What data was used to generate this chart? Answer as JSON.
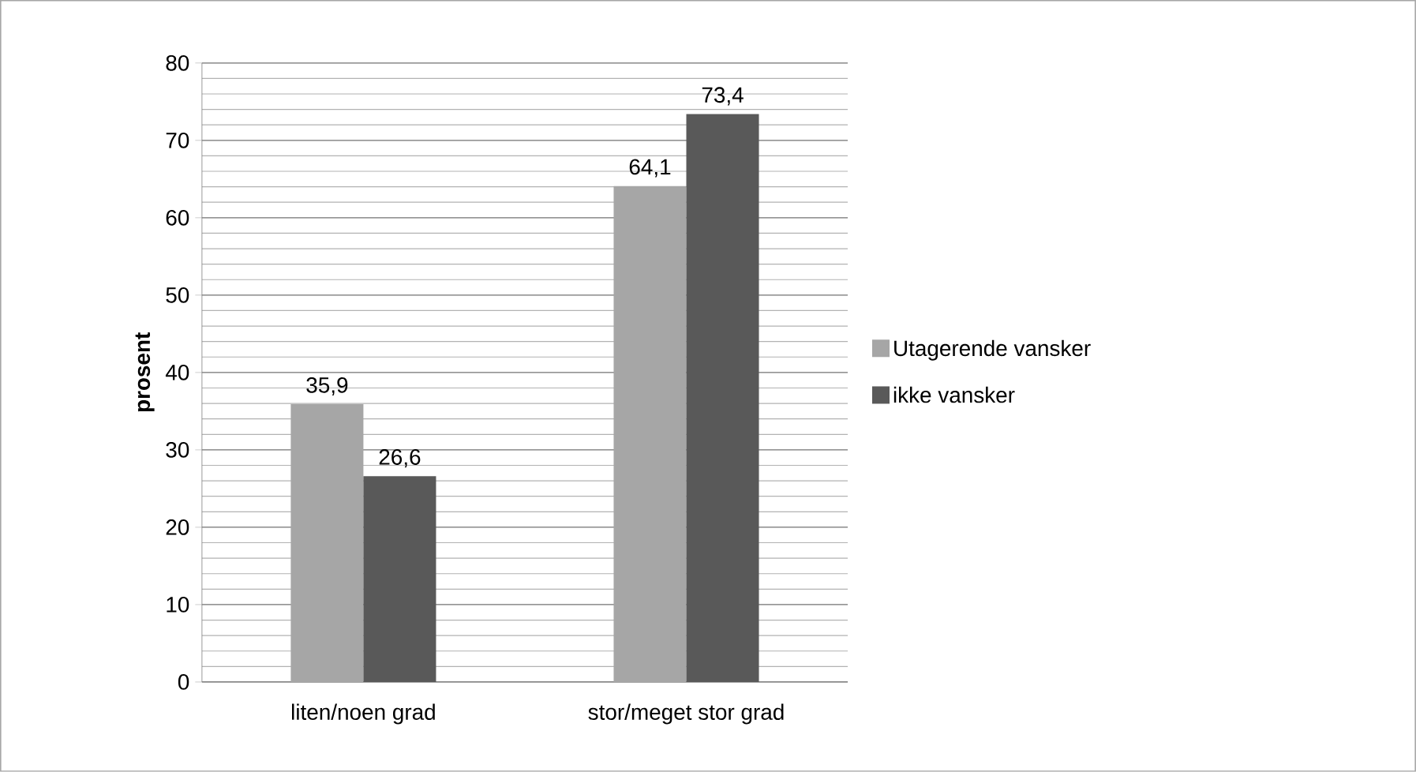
{
  "chart_data": {
    "type": "bar",
    "ylabel": "prosent",
    "categories": [
      "liten/noen grad",
      "stor/meget stor grad"
    ],
    "series": [
      {
        "name": "Utagerende vansker",
        "color": "#a6a6a6",
        "values": [
          35.9,
          64.1
        ],
        "value_labels": [
          "35,9",
          "64,1"
        ]
      },
      {
        "name": "ikke vansker",
        "color": "#595959",
        "values": [
          26.6,
          73.4
        ],
        "value_labels": [
          "26,6",
          "73,4"
        ]
      }
    ],
    "ylim": [
      0,
      80
    ],
    "yticks": [
      0,
      10,
      20,
      30,
      40,
      50,
      60,
      70,
      80
    ],
    "grid": "y",
    "legend": "right"
  }
}
